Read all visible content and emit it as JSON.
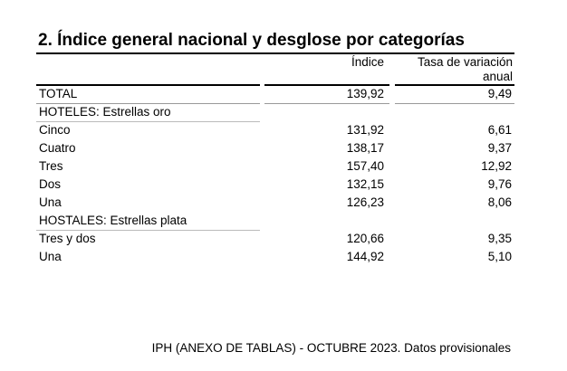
{
  "title": "2. Índice general nacional y desglose por categorías",
  "table": {
    "columns": [
      "Índice",
      "Tasa de variación anual"
    ],
    "rows": [
      {
        "label": "TOTAL",
        "indice": "139,92",
        "tasa": "9,49"
      },
      {
        "label": "HOTELES: Estrellas oro"
      },
      {
        "label": "Cinco",
        "indice": "131,92",
        "tasa": "6,61"
      },
      {
        "label": "Cuatro",
        "indice": "138,17",
        "tasa": "9,37"
      },
      {
        "label": "Tres",
        "indice": "157,40",
        "tasa": "12,92"
      },
      {
        "label": "Dos",
        "indice": "132,15",
        "tasa": "9,76"
      },
      {
        "label": "Una",
        "indice": "126,23",
        "tasa": "8,06"
      },
      {
        "label": "HOSTALES: Estrellas plata"
      },
      {
        "label": "Tres y dos",
        "indice": "120,66",
        "tasa": "9,35"
      },
      {
        "label": "Una",
        "indice": "144,92",
        "tasa": "5,10"
      }
    ]
  },
  "footer": "IPH (ANEXO DE TABLAS) - OCTUBRE 2023. Datos provisionales"
}
